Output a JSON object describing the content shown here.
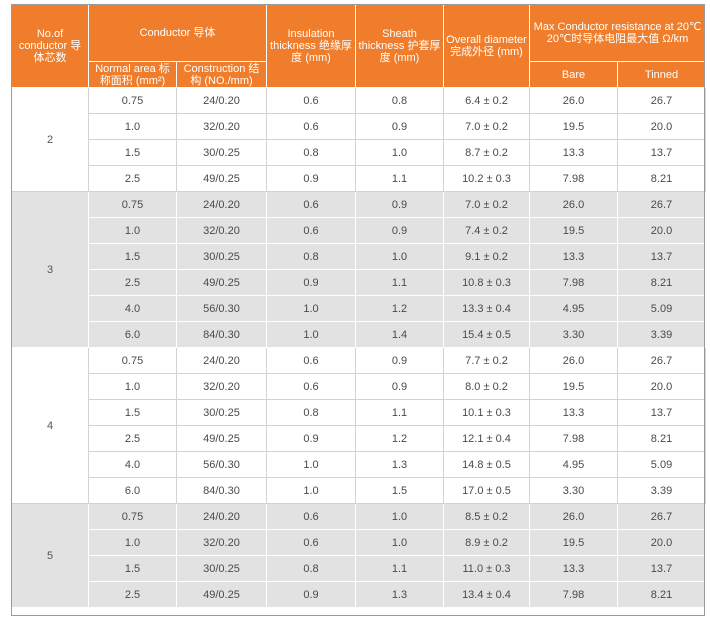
{
  "header": {
    "cores": "No.of conductor 导体芯数",
    "conductor_group": "Conductor 导体",
    "normal_area": "Normal area 标称面积 (mm²)",
    "construction": "Construction 结构 (NO./mm)",
    "insulation": "Insulation thickness 绝缘厚度 (mm)",
    "sheath": "Sheath thickness 护套厚度 (mm)",
    "overall": "Overall diameter 完成外径 (mm)",
    "resistance": "Max Conductor resistance at 20℃ 20℃时导体电阻最大值 Ω/km",
    "bare": "Bare",
    "tinned": "Tinned"
  },
  "groups": [
    {
      "cores": "2",
      "shade": "white",
      "rows": [
        [
          "0.75",
          "24/0.20",
          "0.6",
          "0.8",
          "6.4 ± 0.2",
          "26.0",
          "26.7"
        ],
        [
          "1.0",
          "32/0.20",
          "0.6",
          "0.9",
          "7.0 ± 0.2",
          "19.5",
          "20.0"
        ],
        [
          "1.5",
          "30/0.25",
          "0.8",
          "1.0",
          "8.7 ± 0.2",
          "13.3",
          "13.7"
        ],
        [
          "2.5",
          "49/0.25",
          "0.9",
          "1.1",
          "10.2 ± 0.3",
          "7.98",
          "8.21"
        ]
      ]
    },
    {
      "cores": "3",
      "shade": "gray",
      "rows": [
        [
          "0.75",
          "24/0.20",
          "0.6",
          "0.9",
          "7.0 ± 0.2",
          "26.0",
          "26.7"
        ],
        [
          "1.0",
          "32/0.20",
          "0.6",
          "0.9",
          "7.4 ± 0.2",
          "19.5",
          "20.0"
        ],
        [
          "1.5",
          "30/0.25",
          "0.8",
          "1.0",
          "9.1 ± 0.2",
          "13.3",
          "13.7"
        ],
        [
          "2.5",
          "49/0.25",
          "0.9",
          "1.1",
          "10.8 ± 0.3",
          "7.98",
          "8.21"
        ],
        [
          "4.0",
          "56/0.30",
          "1.0",
          "1.2",
          "13.3 ± 0.4",
          "4.95",
          "5.09"
        ],
        [
          "6.0",
          "84/0.30",
          "1.0",
          "1.4",
          "15.4 ± 0.5",
          "3.30",
          "3.39"
        ]
      ]
    },
    {
      "cores": "4",
      "shade": "white",
      "rows": [
        [
          "0.75",
          "24/0.20",
          "0.6",
          "0.9",
          "7.7 ± 0.2",
          "26.0",
          "26.7"
        ],
        [
          "1.0",
          "32/0.20",
          "0.6",
          "0.9",
          "8.0 ± 0.2",
          "19.5",
          "20.0"
        ],
        [
          "1.5",
          "30/0.25",
          "0.8",
          "1.1",
          "10.1 ± 0.3",
          "13.3",
          "13.7"
        ],
        [
          "2.5",
          "49/0.25",
          "0.9",
          "1.2",
          "12.1 ± 0.4",
          "7.98",
          "8.21"
        ],
        [
          "4.0",
          "56/0.30",
          "1.0",
          "1.3",
          "14.8 ± 0.5",
          "4.95",
          "5.09"
        ],
        [
          "6.0",
          "84/0.30",
          "1.0",
          "1.5",
          "17.0 ± 0.5",
          "3.30",
          "3.39"
        ]
      ]
    },
    {
      "cores": "5",
      "shade": "gray",
      "rows": [
        [
          "0.75",
          "24/0.20",
          "0.6",
          "1.0",
          "8.5 ± 0.2",
          "26.0",
          "26.7"
        ],
        [
          "1.0",
          "32/0.20",
          "0.6",
          "1.0",
          "8.9 ± 0.2",
          "19.5",
          "20.0"
        ],
        [
          "1.5",
          "30/0.25",
          "0.8",
          "1.1",
          "11.0 ± 0.3",
          "13.3",
          "13.7"
        ],
        [
          "2.5",
          "49/0.25",
          "0.9",
          "1.3",
          "13.4 ± 0.4",
          "7.98",
          "8.21"
        ]
      ]
    }
  ]
}
